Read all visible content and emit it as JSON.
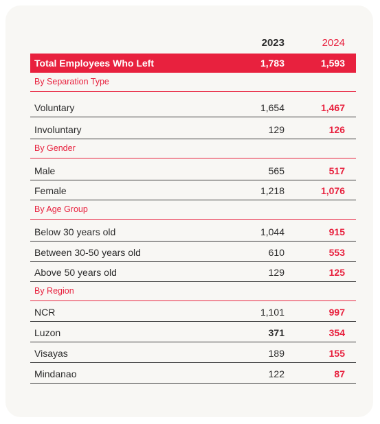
{
  "columns": {
    "y2023": "2023",
    "y2024": "2024"
  },
  "total": {
    "label": "Total Employees Who Left",
    "v2023": "1,783",
    "v2024": "1,593"
  },
  "sections": [
    {
      "title": "By Separation Type",
      "rows": [
        {
          "label": "Voluntary",
          "v2023": "1,654",
          "v2024": "1,467"
        },
        {
          "label": "Involuntary",
          "v2023": "129",
          "v2024": "126"
        }
      ]
    },
    {
      "title": "By Gender",
      "rows": [
        {
          "label": "Male",
          "v2023": "565",
          "v2024": "517"
        },
        {
          "label": "Female",
          "v2023": "1,218",
          "v2024": "1,076"
        }
      ]
    },
    {
      "title": "By Age Group",
      "rows": [
        {
          "label": "Below 30 years old",
          "v2023": "1,044",
          "v2024": "915"
        },
        {
          "label": "Between 30-50 years old",
          "v2023": "610",
          "v2024": "553"
        },
        {
          "label": "Above 50 years old",
          "v2023": "129",
          "v2024": "125"
        }
      ]
    },
    {
      "title": "By Region",
      "rows": [
        {
          "label": "NCR",
          "v2023": "1,101",
          "v2024": "997"
        },
        {
          "label": "Luzon",
          "v2023": "371",
          "v2024": "354"
        },
        {
          "label": "Visayas",
          "v2023": "189",
          "v2024": "155"
        },
        {
          "label": "Mindanao",
          "v2023": "122",
          "v2024": "87"
        }
      ]
    }
  ],
  "colors": {
    "accent": "#e8213e",
    "card": "#f8f7f4",
    "text": "#2b2b2b"
  }
}
